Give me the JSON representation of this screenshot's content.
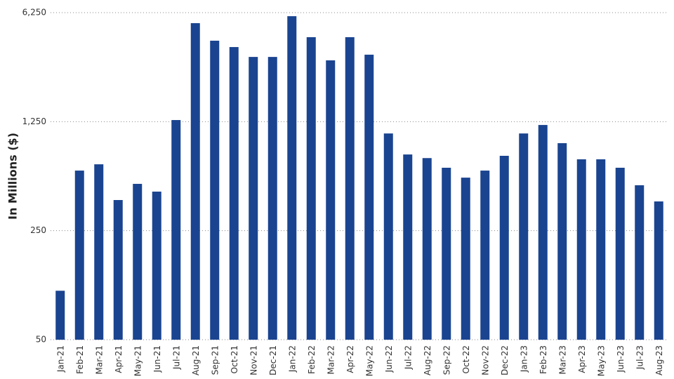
{
  "chart_data": {
    "type": "bar",
    "y_label": "In Millions ($)",
    "categories": [
      "Jan-21",
      "Feb-21",
      "Mar-21",
      "Apr-21",
      "May-21",
      "Jun-21",
      "Jul-21",
      "Aug-21",
      "Sep-21",
      "Oct-21",
      "Nov-21",
      "Dec-21",
      "Jan-22",
      "Feb-22",
      "Mar-22",
      "Apr-22",
      "May-22",
      "Jun-22",
      "Jul-22",
      "Aug-22",
      "Sep-22",
      "Oct-22",
      "Nov-22",
      "Dec-22",
      "Jan-23",
      "Feb-23",
      "Mar-23",
      "Apr-23",
      "May-23",
      "Jun-23",
      "Jul-23",
      "Aug-23"
    ],
    "values": [
      103,
      607,
      666,
      393,
      499,
      445,
      1280,
      5350,
      4130,
      3760,
      3250,
      3250,
      5930,
      4350,
      3090,
      4350,
      3360,
      1050,
      770,
      730,
      633,
      547,
      607,
      755,
      1050,
      1190,
      910,
      717,
      717,
      633,
      489,
      385
    ],
    "color": "#1a4490",
    "log_scale": true,
    "ylim": [
      50,
      6250
    ],
    "yticks": [
      50,
      250,
      {
        "value": 1250,
        "label": "1,250"
      },
      {
        "value": 6250,
        "label": "6,250"
      }
    ],
    "grid": true
  }
}
